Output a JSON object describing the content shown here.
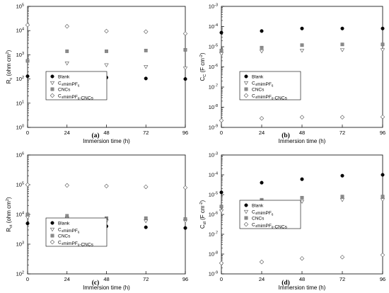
{
  "chart_data": [
    {
      "type": "scatter",
      "panel_label": "(a)",
      "xlabel": "Immersion time (h)",
      "ylabel_main": "R",
      "ylabel_sub": "c",
      "ylabel_units": " (ohm cm",
      "ylabel_units_sup": "2",
      "ylabel_units_end": ")",
      "yscale": "log",
      "ylim_exp": [
        0,
        5
      ],
      "xticks": [
        0,
        24,
        48,
        72,
        96
      ],
      "legend_position": "bottom-left",
      "series": [
        {
          "name": "Blank",
          "marker": "circle-filled",
          "x": [
            0,
            24,
            48,
            72,
            96
          ],
          "y": [
            130,
            140,
            115,
            105,
            100
          ]
        },
        {
          "name": "C4mimPF6",
          "marker": "triangle-down-open",
          "x": [
            24,
            48,
            72,
            96
          ],
          "y": [
            450,
            380,
            320,
            280
          ]
        },
        {
          "name": "CNCs",
          "marker": "square-gray",
          "x": [
            0,
            24,
            48,
            72,
            96
          ],
          "y": [
            560,
            1400,
            1400,
            1500,
            1600
          ]
        },
        {
          "name": "C4mimPF6-CNCs",
          "marker": "diamond-open",
          "x": [
            0,
            24,
            48,
            72,
            96
          ],
          "y": [
            17000,
            15000,
            9500,
            9000,
            7500
          ]
        }
      ]
    },
    {
      "type": "scatter",
      "panel_label": "(b)",
      "xlabel": "Immersion time (h)",
      "ylabel_main": "C",
      "ylabel_sub": "C",
      "ylabel_units": " (F cm",
      "ylabel_units_sup": "-2",
      "ylabel_units_end": ")",
      "yscale": "log",
      "ylim_exp": [
        -9,
        -3
      ],
      "xticks": [
        0,
        24,
        48,
        72,
        96
      ],
      "legend_position": "bottom-left",
      "series": [
        {
          "name": "Blank",
          "marker": "circle-filled",
          "x": [
            0,
            24,
            48,
            72,
            96
          ],
          "y": [
            5e-05,
            6e-05,
            8e-05,
            8e-05,
            8e-05
          ]
        },
        {
          "name": "C4mimPF6",
          "marker": "triangle-down-open",
          "x": [
            0,
            24,
            48,
            72,
            96
          ],
          "y": [
            4.5e-06,
            6e-06,
            6.5e-06,
            7e-06,
            7e-06
          ]
        },
        {
          "name": "CNCs",
          "marker": "square-gray",
          "x": [
            0,
            24,
            48,
            72,
            96
          ],
          "y": [
            6.5e-06,
            9e-06,
            1.2e-05,
            1.3e-05,
            1.3e-05
          ]
        },
        {
          "name": "C4mimPF6-CNCs",
          "marker": "diamond-open",
          "x": [
            0,
            24,
            48,
            72,
            96
          ],
          "y": [
            2.2e-09,
            2.8e-09,
            3.2e-09,
            3.2e-09,
            3.3e-09
          ]
        }
      ]
    },
    {
      "type": "scatter",
      "panel_label": "(c)",
      "xlabel": "Immersion time (h)",
      "ylabel_main": "R",
      "ylabel_sub": "ct",
      "ylabel_units": " (ohm cm",
      "ylabel_units_sup": "2",
      "ylabel_units_end": ")",
      "yscale": "log",
      "ylim_exp": [
        2,
        6
      ],
      "xticks": [
        0,
        24,
        48,
        72,
        96
      ],
      "legend_position": "bottom-left",
      "series": [
        {
          "name": "Blank",
          "marker": "circle-filled",
          "x": [
            0,
            24,
            48,
            72,
            96
          ],
          "y": [
            5000,
            4500,
            4000,
            3700,
            3500
          ]
        },
        {
          "name": "C4mimPF6",
          "marker": "triangle-down-open",
          "x": [
            0,
            24,
            48,
            72,
            96
          ],
          "y": [
            8000,
            7500,
            6000,
            6000,
            6000
          ]
        },
        {
          "name": "CNCs",
          "marker": "square-gray",
          "x": [
            0,
            24,
            48,
            72,
            96
          ],
          "y": [
            10000,
            9000,
            7500,
            7500,
            7000
          ]
        },
        {
          "name": "C4mimPF6-CNCs",
          "marker": "diamond-open",
          "x": [
            0,
            24,
            48,
            72,
            96
          ],
          "y": [
            100000,
            95000,
            90000,
            85000,
            80000
          ]
        }
      ]
    },
    {
      "type": "scatter",
      "panel_label": "(d)",
      "xlabel": "Immersion time (h)",
      "ylabel_main": "C",
      "ylabel_sub": "dl",
      "ylabel_units": " (F cm",
      "ylabel_units_sup": "-2",
      "ylabel_units_end": ")",
      "yscale": "log",
      "ylim_exp": [
        -9,
        -3
      ],
      "xticks": [
        0,
        24,
        48,
        72,
        96
      ],
      "legend_position": "top-left",
      "series": [
        {
          "name": "Blank",
          "marker": "circle-filled",
          "x": [
            0,
            24,
            48,
            72,
            96
          ],
          "y": [
            1.3e-05,
            4e-05,
            6e-05,
            9e-05,
            0.0001
          ]
        },
        {
          "name": "C4mimPF6",
          "marker": "triangle-down-open",
          "x": [
            0,
            24,
            48,
            72,
            96
          ],
          "y": [
            1.5e-06,
            3.5e-06,
            4.5e-06,
            5.5e-06,
            5.5e-06
          ]
        },
        {
          "name": "CNCs",
          "marker": "square-gray",
          "x": [
            0,
            24,
            48,
            72,
            96
          ],
          "y": [
            2.5e-06,
            5.5e-06,
            7e-06,
            8e-06,
            8e-06
          ]
        },
        {
          "name": "C4mimPF6-CNCs",
          "marker": "diamond-open",
          "x": [
            0,
            24,
            48,
            72,
            96
          ],
          "y": [
            3.5e-09,
            4e-09,
            6e-09,
            7e-09,
            9e-09
          ]
        }
      ]
    }
  ]
}
